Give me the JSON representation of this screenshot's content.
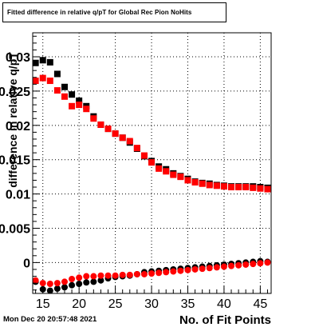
{
  "title": "Fitted difference in relative q/pT for Global Rec Pion NoHits",
  "timestamp": "Mon Dec 20 20:57:48 2021",
  "colors": {
    "series_black": "#000000",
    "series_red": "#ff0000",
    "frame": "#000000",
    "background": "#ffffff"
  },
  "chart_data": {
    "type": "scatter",
    "title": "Fitted difference in relative q/pT for Global Rec Pion NoHits",
    "xlabel": "No. of Fit Points",
    "ylabel": "difference in relative q/pT",
    "xlim": [
      13.6,
      46.5
    ],
    "ylim": [
      -0.0045,
      0.0335
    ],
    "x_ticks": [
      15,
      20,
      25,
      30,
      35,
      40,
      45
    ],
    "x_tick_labels": [
      "15",
      "20",
      "25",
      "30",
      "35",
      "40",
      "45"
    ],
    "y_ticks": [
      0,
      0.005,
      0.01,
      0.015,
      0.02,
      0.025,
      0.03
    ],
    "y_tick_labels": [
      "0",
      "0.005",
      "0.01",
      "0.015",
      "0.02",
      "0.025",
      "0.03"
    ],
    "grid": true,
    "legend": "none",
    "series": [
      {
        "color": "#000000",
        "marker": "square",
        "x": [
          14,
          15,
          16,
          17,
          18,
          19,
          20,
          21,
          22,
          23,
          24,
          25,
          26,
          27,
          28,
          29,
          30,
          31,
          32,
          33,
          34,
          35,
          36,
          37,
          38,
          39,
          40,
          41,
          42,
          43,
          44,
          45,
          46
        ],
        "y": [
          0.0291,
          0.0295,
          0.0292,
          0.0275,
          0.0256,
          0.0245,
          0.0236,
          0.0228,
          0.0213,
          0.0201,
          0.0195,
          0.0188,
          0.0182,
          0.0175,
          0.0166,
          0.0155,
          0.0148,
          0.014,
          0.0136,
          0.013,
          0.0126,
          0.0122,
          0.0118,
          0.0116,
          0.0115,
          0.0113,
          0.0112,
          0.0111,
          0.0111,
          0.0111,
          0.0111,
          0.011,
          0.0109
        ]
      },
      {
        "color": "#ff0000",
        "marker": "square",
        "x": [
          14,
          15,
          16,
          17,
          18,
          19,
          20,
          21,
          22,
          23,
          24,
          25,
          26,
          27,
          28,
          29,
          30,
          31,
          32,
          33,
          34,
          35,
          36,
          37,
          38,
          39,
          40,
          41,
          42,
          43,
          44,
          45,
          46
        ],
        "y": [
          0.0265,
          0.0269,
          0.0265,
          0.0251,
          0.0242,
          0.0228,
          0.023,
          0.0224,
          0.021,
          0.0201,
          0.0195,
          0.0188,
          0.0182,
          0.0177,
          0.0167,
          0.0156,
          0.0146,
          0.0137,
          0.0133,
          0.0128,
          0.0125,
          0.012,
          0.0117,
          0.0115,
          0.0113,
          0.0112,
          0.0111,
          0.011,
          0.011,
          0.011,
          0.0109,
          0.0108,
          0.0107
        ]
      },
      {
        "color": "#000000",
        "marker": "circle",
        "x": [
          14,
          15,
          16,
          17,
          18,
          19,
          20,
          21,
          22,
          23,
          24,
          25,
          26,
          27,
          28,
          29,
          30,
          31,
          32,
          33,
          34,
          35,
          36,
          37,
          38,
          39,
          40,
          41,
          42,
          43,
          44,
          45,
          46
        ],
        "y": [
          -0.0028,
          -0.0039,
          -0.0041,
          -0.0038,
          -0.0036,
          -0.0033,
          -0.0031,
          -0.0029,
          -0.0028,
          -0.0026,
          -0.0023,
          -0.0021,
          -0.002,
          -0.0019,
          -0.0017,
          -0.0014,
          -0.0013,
          -0.0012,
          -0.0011,
          -0.001,
          -0.0009,
          -0.0008,
          -0.0007,
          -0.0006,
          -0.0005,
          -0.0004,
          -0.0003,
          -0.0002,
          -0.0001,
          0.0,
          0.0001,
          0.0002,
          0.0001
        ]
      },
      {
        "color": "#ff0000",
        "marker": "circle",
        "x": [
          14,
          15,
          16,
          17,
          18,
          19,
          20,
          21,
          22,
          23,
          24,
          25,
          26,
          27,
          28,
          29,
          30,
          31,
          32,
          33,
          34,
          35,
          36,
          37,
          38,
          39,
          40,
          41,
          42,
          43,
          44,
          45,
          46
        ],
        "y": [
          -0.0026,
          -0.003,
          -0.0031,
          -0.003,
          -0.0028,
          -0.0024,
          -0.0022,
          -0.002,
          -0.002,
          -0.0019,
          -0.0019,
          -0.0019,
          -0.0018,
          -0.0018,
          -0.0017,
          -0.0017,
          -0.0016,
          -0.0015,
          -0.0014,
          -0.0013,
          -0.0012,
          -0.0011,
          -0.001,
          -0.0009,
          -0.0008,
          -0.0007,
          -0.0006,
          -0.0005,
          -0.0004,
          -0.0003,
          -0.0002,
          -0.0001,
          0.0
        ]
      }
    ]
  }
}
